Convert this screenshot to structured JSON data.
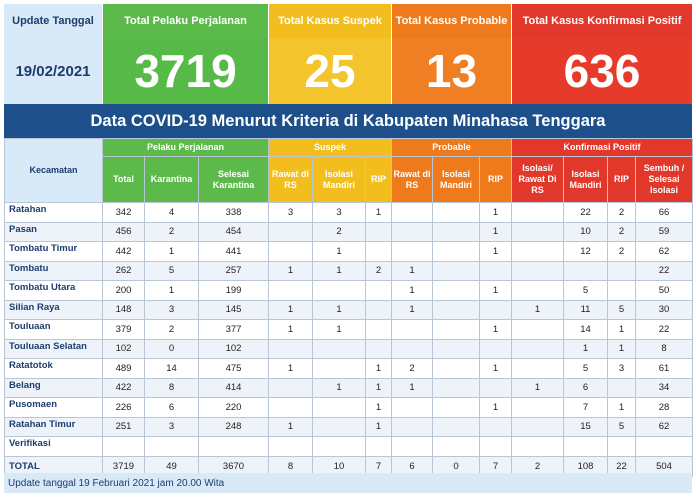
{
  "summary": {
    "update_label": "Update Tanggal",
    "update_date": "19/02/2021",
    "ppp_label": "Total Pelaku Perjalanan",
    "ppp_value": "3719",
    "suspek_label": "Total Kasus Suspek",
    "suspek_value": "25",
    "probable_label": "Total Kasus Probable",
    "probable_value": "13",
    "positif_label": "Total Kasus Konfirmasi Positif",
    "positif_value": "636"
  },
  "colors": {
    "green": "#5cba4a",
    "yellow": "#f2be1e",
    "orange": "#ee7a1c",
    "red": "#e2372b",
    "navy": "#1d4f8a",
    "light_blue": "#d8e9f7"
  },
  "title": "Data COVID-19 Menurut Kriteria di Kabupaten Minahasa Tenggara",
  "table": {
    "kecamatan_header": "Kecamatan",
    "groups": {
      "ppp": "Pelaku Perjalanan",
      "suspek": "Suspek",
      "probable": "Probable",
      "positif": "Konfirmasi Positif"
    },
    "columns": [
      "Total",
      "Karantina",
      "Selesai Karantina",
      "Rawat di RS",
      "Isolasi Mandiri",
      "RIP",
      "Rawat di RS",
      "Isolasi Mandiri",
      "RIP",
      "Isolasi/ Rawat Di RS",
      "Isolasi Mandiri",
      "RIP",
      "Sembuh / Selesai Isolasi"
    ],
    "rows": [
      {
        "name": "Ratahan",
        "v": [
          "342",
          "4",
          "338",
          "3",
          "3",
          "1",
          "",
          "",
          "1",
          "",
          "22",
          "2",
          "66"
        ]
      },
      {
        "name": "Pasan",
        "v": [
          "456",
          "2",
          "454",
          "",
          "2",
          "",
          "",
          "",
          "1",
          "",
          "10",
          "2",
          "59"
        ]
      },
      {
        "name": "Tombatu Timur",
        "v": [
          "442",
          "1",
          "441",
          "",
          "1",
          "",
          "",
          "",
          "1",
          "",
          "12",
          "2",
          "62"
        ]
      },
      {
        "name": "Tombatu",
        "v": [
          "262",
          "5",
          "257",
          "1",
          "1",
          "2",
          "1",
          "",
          "",
          "",
          "",
          "",
          "22"
        ]
      },
      {
        "name": "Tombatu Utara",
        "v": [
          "200",
          "1",
          "199",
          "",
          "",
          "",
          "1",
          "",
          "1",
          "",
          "5",
          "",
          "50"
        ]
      },
      {
        "name": "Silian Raya",
        "v": [
          "148",
          "3",
          "145",
          "1",
          "1",
          "",
          "1",
          "",
          "",
          "1",
          "11",
          "5",
          "30"
        ]
      },
      {
        "name": "Touluaan",
        "v": [
          "379",
          "2",
          "377",
          "1",
          "1",
          "",
          "",
          "",
          "1",
          "",
          "14",
          "1",
          "22"
        ]
      },
      {
        "name": "Touluaan Selatan",
        "v": [
          "102",
          "0",
          "102",
          "",
          "",
          "",
          "",
          "",
          "",
          "",
          "1",
          "1",
          "8"
        ]
      },
      {
        "name": "Ratatotok",
        "v": [
          "489",
          "14",
          "475",
          "1",
          "",
          "1",
          "2",
          "",
          "1",
          "",
          "5",
          "3",
          "61"
        ]
      },
      {
        "name": "Belang",
        "v": [
          "422",
          "8",
          "414",
          "",
          "1",
          "1",
          "1",
          "",
          "",
          "1",
          "6",
          "",
          "34"
        ]
      },
      {
        "name": "Pusomaen",
        "v": [
          "226",
          "6",
          "220",
          "",
          "",
          "1",
          "",
          "",
          "1",
          "",
          "7",
          "1",
          "28"
        ]
      },
      {
        "name": "Ratahan Timur",
        "v": [
          "251",
          "3",
          "248",
          "1",
          "",
          "1",
          "",
          "",
          "",
          "",
          "15",
          "5",
          "62"
        ]
      },
      {
        "name": "Verifikasi",
        "v": [
          "",
          "",
          "",
          "",
          "",
          "",
          "",
          "",
          "",
          "",
          "",
          "",
          ""
        ]
      }
    ],
    "total": {
      "name": "TOTAL",
      "v": [
        "3719",
        "49",
        "3670",
        "8",
        "10",
        "7",
        "6",
        "0",
        "7",
        "2",
        "108",
        "22",
        "504"
      ]
    }
  },
  "footer": "Update tanggal 19 Februari 2021 jam 20.00 Wita"
}
